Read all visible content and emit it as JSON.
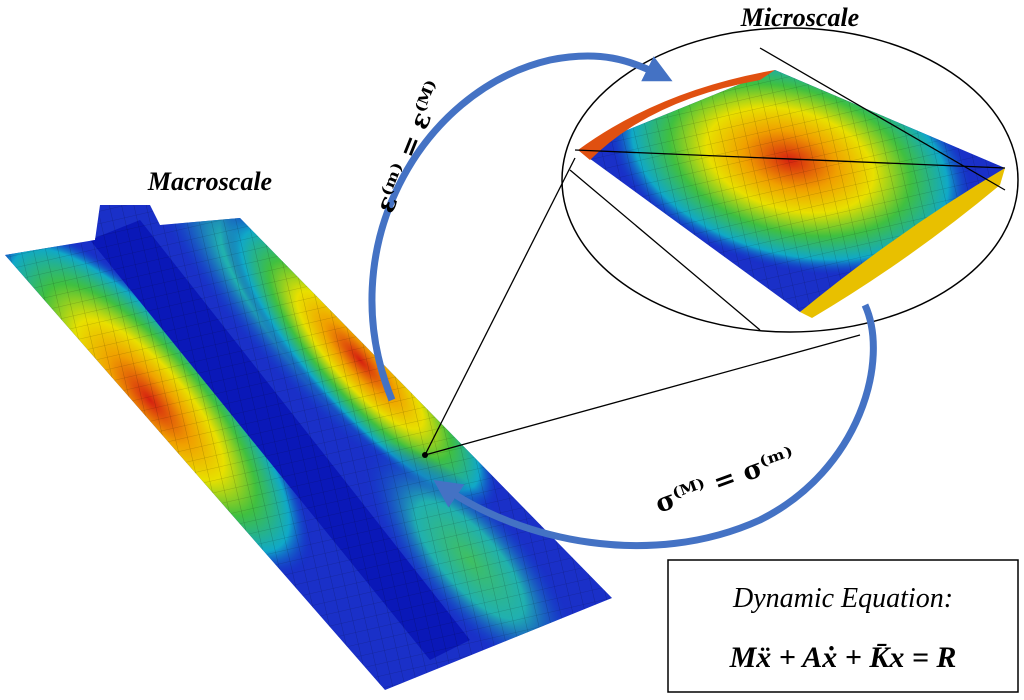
{
  "labels": {
    "macroscale": "Macroscale",
    "microscale": "Microscale"
  },
  "equations": {
    "strain": "ε⁽ᵐ⁾ = ε⁽ᴹ⁾",
    "stress": "σ⁽ᴹ⁾ = σ⁽ᵐ⁾"
  },
  "box": {
    "title": "Dynamic Equation:",
    "equation": "Mẍ + Aẋ + K̄x = R"
  }
}
